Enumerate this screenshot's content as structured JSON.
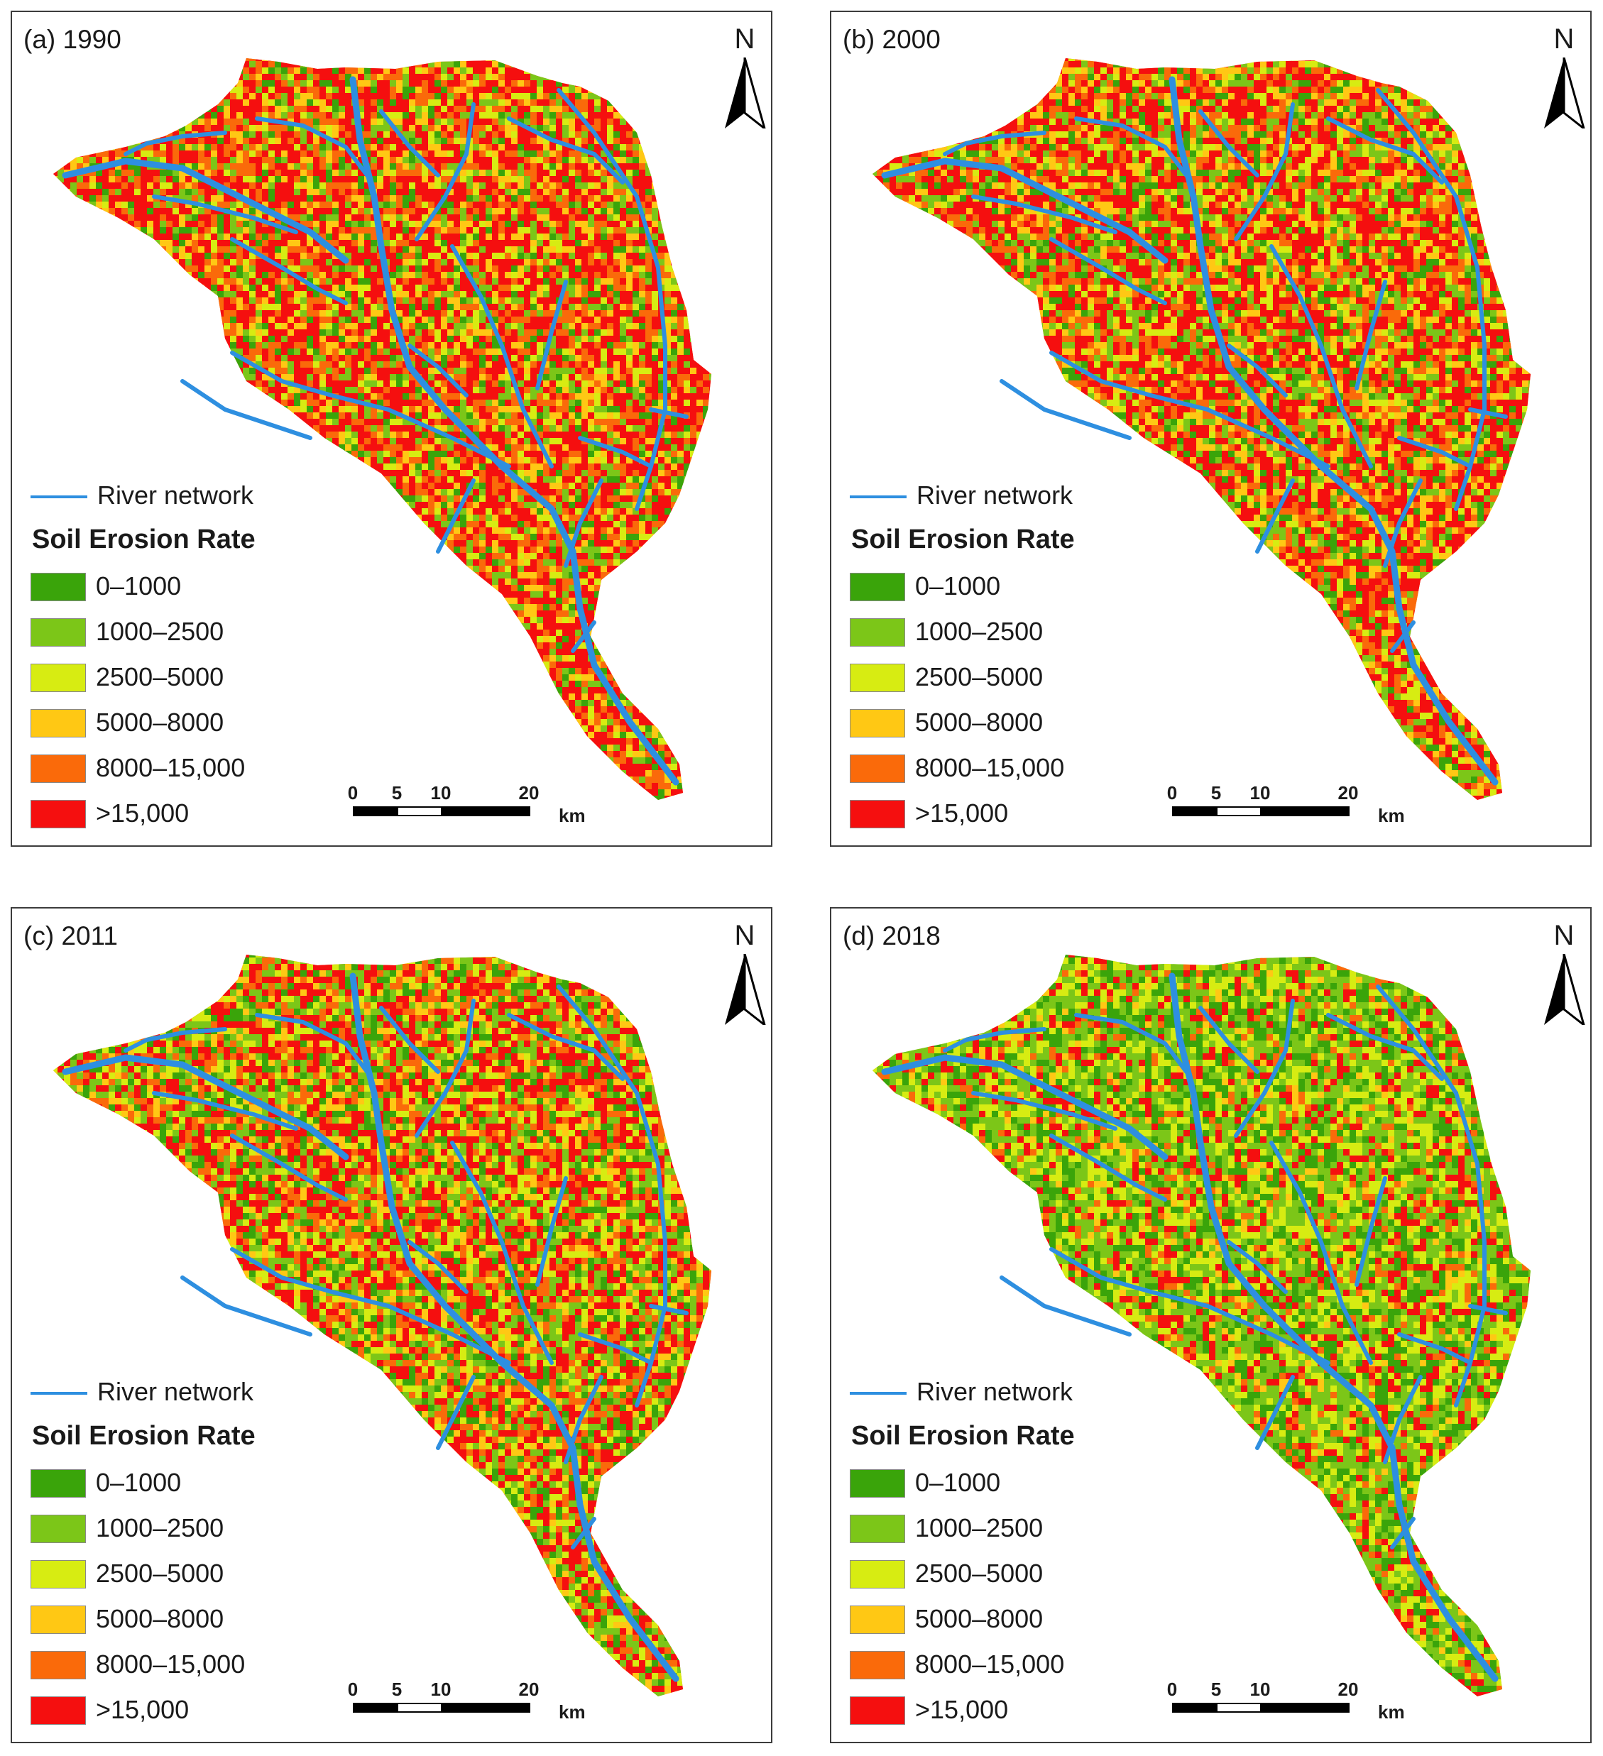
{
  "panels": [
    {
      "label": "(a) 1990",
      "greenness": 0.3
    },
    {
      "label": "(b) 2000",
      "greenness": 0.33
    },
    {
      "label": "(c) 2011",
      "greenness": 0.45
    },
    {
      "label": "(d) 2018",
      "greenness": 0.72
    }
  ],
  "north_label": "N",
  "legend": {
    "river_label": "River network",
    "river_color": "#2e8fe0",
    "title": "Soil Erosion Rate",
    "classes": [
      {
        "label": "0–1000",
        "color": "#3aa40a"
      },
      {
        "label": "1000–2500",
        "color": "#7cc618"
      },
      {
        "label": "2500–5000",
        "color": "#d7ec12"
      },
      {
        "label": "5000–8000",
        "color": "#ffc814"
      },
      {
        "label": "8000–15,000",
        "color": "#fa6a0a"
      },
      {
        "label": ">15,000",
        "color": "#f50f0f"
      }
    ]
  },
  "scale_bar": {
    "ticks": [
      "0",
      "5",
      "10",
      "20"
    ],
    "unit": "km"
  }
}
